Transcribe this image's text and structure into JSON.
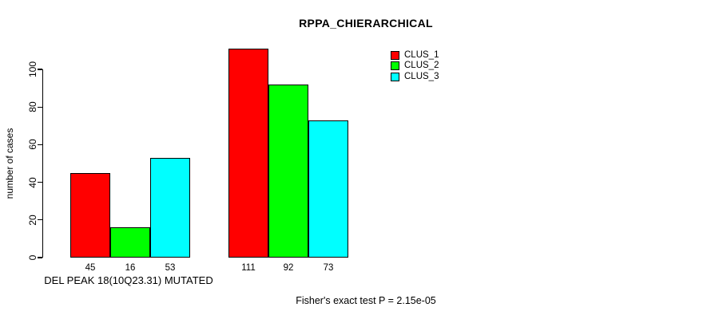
{
  "chart_data": {
    "type": "bar",
    "title": "RPPA_CHIERARCHICAL",
    "ylabel": "number of cases",
    "categories": [
      "DEL PEAK 18(10Q23.31) MUTATED",
      ""
    ],
    "series": [
      {
        "name": "CLUS_1",
        "color": "#FF0000",
        "values": [
          45,
          111
        ]
      },
      {
        "name": "CLUS_2",
        "color": "#00FF00",
        "values": [
          16,
          92
        ]
      },
      {
        "name": "CLUS_3",
        "color": "#00FFFF",
        "values": [
          53,
          73
        ]
      }
    ],
    "bar_value_labels": [
      [
        45,
        16,
        53
      ],
      [
        111,
        92,
        73
      ]
    ],
    "yticks": [
      0,
      20,
      40,
      60,
      80,
      100
    ],
    "ylim": [
      0,
      115
    ],
    "grid": false,
    "legend": {
      "position": "top-right",
      "entries": [
        "CLUS_1",
        "CLUS_2",
        "CLUS_3"
      ]
    },
    "annotation": "Fisher's exact test P = 2.15e-05",
    "colors": {
      "CLUS_1": "#FF0000",
      "CLUS_2": "#00FF00",
      "CLUS_3": "#00FFFF",
      "axis": "#000000",
      "background": "#FFFFFF"
    }
  }
}
